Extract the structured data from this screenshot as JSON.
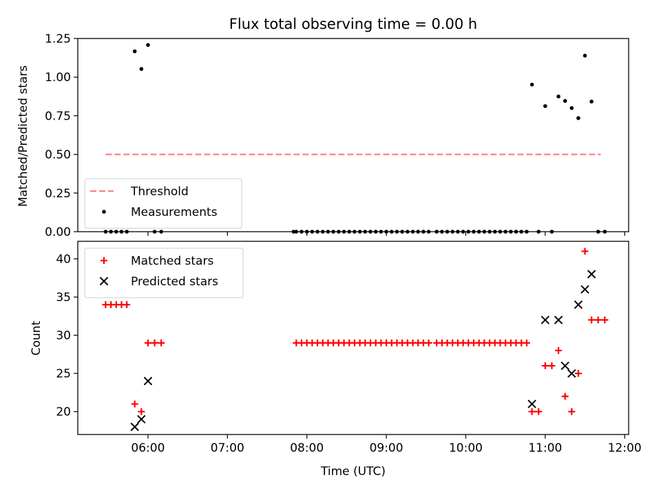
{
  "chart_data": [
    {
      "type": "scatter",
      "title": "Flux total observing time = 0.00 h",
      "xlabel": "",
      "ylabel": "Matched/Predicted stars",
      "xlim": [
        "05:07",
        "12:03"
      ],
      "ylim": [
        0,
        1.25
      ],
      "yticks": [
        0,
        0.25,
        0.5,
        0.75,
        1.0,
        1.25
      ],
      "ytick_labels": [
        "0.00",
        "0.25",
        "0.50",
        "0.75",
        "1.00",
        "1.25"
      ],
      "xticks": [
        "06:00",
        "07:00",
        "08:00",
        "09:00",
        "10:00",
        "11:00",
        "12:00"
      ],
      "grid": false,
      "legend_position": "lower-left",
      "series": [
        {
          "name": "Threshold",
          "style": "dashed-line",
          "color": "#ff7f7f",
          "points": [
            [
              "05:28",
              0.5
            ],
            [
              "11:42",
              0.5
            ]
          ]
        },
        {
          "name": "Measurements",
          "style": "dot",
          "color": "#000000",
          "points": [
            [
              "05:28",
              0
            ],
            [
              "05:32",
              0
            ],
            [
              "05:36",
              0
            ],
            [
              "05:40",
              0
            ],
            [
              "05:44",
              0
            ],
            [
              "05:50",
              1.167
            ],
            [
              "05:55",
              1.053
            ],
            [
              "06:00",
              1.208
            ],
            [
              "06:05",
              0
            ],
            [
              "06:10",
              0
            ],
            [
              "07:50",
              0
            ],
            [
              "07:52",
              0
            ],
            [
              "07:56",
              0
            ],
            [
              "08:00",
              0
            ],
            [
              "08:04",
              0
            ],
            [
              "08:08",
              0
            ],
            [
              "08:12",
              0
            ],
            [
              "08:16",
              0
            ],
            [
              "08:20",
              0
            ],
            [
              "08:24",
              0
            ],
            [
              "08:28",
              0
            ],
            [
              "08:32",
              0
            ],
            [
              "08:36",
              0
            ],
            [
              "08:40",
              0
            ],
            [
              "08:44",
              0
            ],
            [
              "08:48",
              0
            ],
            [
              "08:52",
              0
            ],
            [
              "08:56",
              0
            ],
            [
              "09:00",
              0
            ],
            [
              "09:04",
              0
            ],
            [
              "09:08",
              0
            ],
            [
              "09:12",
              0
            ],
            [
              "09:16",
              0
            ],
            [
              "09:20",
              0
            ],
            [
              "09:24",
              0
            ],
            [
              "09:28",
              0
            ],
            [
              "09:32",
              0
            ],
            [
              "09:38",
              0
            ],
            [
              "09:42",
              0
            ],
            [
              "09:46",
              0
            ],
            [
              "09:50",
              0
            ],
            [
              "09:54",
              0
            ],
            [
              "09:58",
              0
            ],
            [
              "10:02",
              0
            ],
            [
              "10:06",
              0
            ],
            [
              "10:10",
              0
            ],
            [
              "10:14",
              0
            ],
            [
              "10:18",
              0
            ],
            [
              "10:22",
              0
            ],
            [
              "10:26",
              0
            ],
            [
              "10:30",
              0
            ],
            [
              "10:34",
              0
            ],
            [
              "10:38",
              0
            ],
            [
              "10:42",
              0
            ],
            [
              "10:46",
              0
            ],
            [
              "10:50",
              0.952
            ],
            [
              "10:55",
              0
            ],
            [
              "11:00",
              0.813
            ],
            [
              "11:05",
              0
            ],
            [
              "11:10",
              0.875
            ],
            [
              "11:15",
              0.846
            ],
            [
              "11:20",
              0.8
            ],
            [
              "11:25",
              0.735
            ],
            [
              "11:30",
              1.139
            ],
            [
              "11:35",
              0.842
            ],
            [
              "11:40",
              0
            ],
            [
              "11:45",
              0
            ]
          ]
        }
      ]
    },
    {
      "type": "scatter",
      "title": "",
      "xlabel": "Time (UTC)",
      "ylabel": "Count",
      "xlim": [
        "05:07",
        "12:03"
      ],
      "ylim": [
        17,
        42.3
      ],
      "yticks": [
        20,
        25,
        30,
        35,
        40
      ],
      "ytick_labels": [
        "20",
        "25",
        "30",
        "35",
        "40"
      ],
      "xticks": [
        "06:00",
        "07:00",
        "08:00",
        "09:00",
        "10:00",
        "11:00",
        "12:00"
      ],
      "xtick_labels": [
        "06:00",
        "07:00",
        "08:00",
        "09:00",
        "10:00",
        "11:00",
        "12:00"
      ],
      "grid": false,
      "legend_position": "upper-left",
      "series": [
        {
          "name": "Matched stars",
          "style": "plus",
          "color": "#ff0000",
          "points": [
            [
              "05:28",
              34
            ],
            [
              "05:32",
              34
            ],
            [
              "05:36",
              34
            ],
            [
              "05:40",
              34
            ],
            [
              "05:44",
              34
            ],
            [
              "05:50",
              21
            ],
            [
              "05:55",
              20
            ],
            [
              "06:00",
              29
            ],
            [
              "06:05",
              29
            ],
            [
              "06:10",
              29
            ],
            [
              "07:52",
              29
            ],
            [
              "07:56",
              29
            ],
            [
              "08:00",
              29
            ],
            [
              "08:04",
              29
            ],
            [
              "08:08",
              29
            ],
            [
              "08:12",
              29
            ],
            [
              "08:16",
              29
            ],
            [
              "08:20",
              29
            ],
            [
              "08:24",
              29
            ],
            [
              "08:28",
              29
            ],
            [
              "08:32",
              29
            ],
            [
              "08:36",
              29
            ],
            [
              "08:40",
              29
            ],
            [
              "08:44",
              29
            ],
            [
              "08:48",
              29
            ],
            [
              "08:52",
              29
            ],
            [
              "08:56",
              29
            ],
            [
              "09:00",
              29
            ],
            [
              "09:04",
              29
            ],
            [
              "09:08",
              29
            ],
            [
              "09:12",
              29
            ],
            [
              "09:16",
              29
            ],
            [
              "09:20",
              29
            ],
            [
              "09:24",
              29
            ],
            [
              "09:28",
              29
            ],
            [
              "09:32",
              29
            ],
            [
              "09:38",
              29
            ],
            [
              "09:42",
              29
            ],
            [
              "09:46",
              29
            ],
            [
              "09:50",
              29
            ],
            [
              "09:54",
              29
            ],
            [
              "09:58",
              29
            ],
            [
              "10:02",
              29
            ],
            [
              "10:06",
              29
            ],
            [
              "10:10",
              29
            ],
            [
              "10:14",
              29
            ],
            [
              "10:18",
              29
            ],
            [
              "10:22",
              29
            ],
            [
              "10:26",
              29
            ],
            [
              "10:30",
              29
            ],
            [
              "10:34",
              29
            ],
            [
              "10:38",
              29
            ],
            [
              "10:42",
              29
            ],
            [
              "10:46",
              29
            ],
            [
              "10:50",
              20
            ],
            [
              "10:55",
              20
            ],
            [
              "11:00",
              26
            ],
            [
              "11:05",
              26
            ],
            [
              "11:10",
              28
            ],
            [
              "11:15",
              22
            ],
            [
              "11:20",
              20
            ],
            [
              "11:25",
              25
            ],
            [
              "11:30",
              41
            ],
            [
              "11:35",
              32
            ],
            [
              "11:40",
              32
            ],
            [
              "11:45",
              32
            ]
          ]
        },
        {
          "name": "Predicted stars",
          "style": "x",
          "color": "#000000",
          "points": [
            [
              "05:50",
              18
            ],
            [
              "05:55",
              19
            ],
            [
              "06:00",
              24
            ],
            [
              "10:50",
              21
            ],
            [
              "11:00",
              32
            ],
            [
              "11:10",
              32
            ],
            [
              "11:15",
              26
            ],
            [
              "11:20",
              25
            ],
            [
              "11:25",
              34
            ],
            [
              "11:30",
              36
            ],
            [
              "11:35",
              38
            ]
          ]
        }
      ]
    }
  ]
}
